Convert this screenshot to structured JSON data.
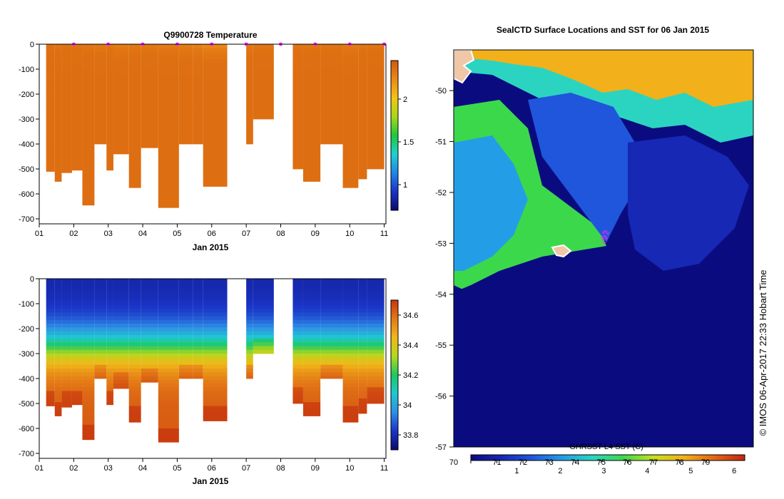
{
  "colors": {
    "temp_ramp": [
      "#0b0b6e",
      "#1a35c8",
      "#1f86e8",
      "#1fd0d0",
      "#1ec83c",
      "#a8d818",
      "#f2c416",
      "#ec8a16",
      "#d2570f"
    ],
    "salt_ramp": [
      "#0b0b6e",
      "#1a35c8",
      "#2f8ee6",
      "#1fc8d0",
      "#1ec862",
      "#b6d81c",
      "#f0b81a",
      "#e47a16",
      "#c8360e"
    ],
    "sst_ramp": [
      "#0b0b80",
      "#1628b4",
      "#1f56dc",
      "#239ee6",
      "#2bd4c0",
      "#3cd84c",
      "#c6e022",
      "#f2b01a",
      "#e46614",
      "#c22412"
    ],
    "marker": "#ff22ff",
    "land": "#f0c8a8"
  },
  "chart_data": [
    {
      "type": "heatmap",
      "title": "Q9900728  Temperature",
      "xlabel": "Jan 2015",
      "xlim": [
        1,
        11.05
      ],
      "ylim": [
        -720,
        0
      ],
      "x_ticks": [
        {
          "v": 1,
          "label": "01"
        },
        {
          "v": 2,
          "label": "02"
        },
        {
          "v": 3,
          "label": "03"
        },
        {
          "v": 4,
          "label": "04"
        },
        {
          "v": 5,
          "label": "05"
        },
        {
          "v": 6,
          "label": "06"
        },
        {
          "v": 7,
          "label": "07"
        },
        {
          "v": 8,
          "label": "08"
        },
        {
          "v": 9,
          "label": "09"
        },
        {
          "v": 10,
          "label": "10"
        },
        {
          "v": 11,
          "label": "11"
        }
      ],
      "y_ticks": [
        {
          "v": 0,
          "label": "0"
        },
        {
          "v": -100,
          "label": "-100"
        },
        {
          "v": -200,
          "label": "-200"
        },
        {
          "v": -300,
          "label": "-300"
        },
        {
          "v": -400,
          "label": "-400"
        },
        {
          "v": -500,
          "label": "-500"
        },
        {
          "v": -600,
          "label": "-600"
        },
        {
          "v": -700,
          "label": "-700"
        }
      ],
      "colorbar": {
        "min": 0.7,
        "max": 2.45,
        "ticks": [
          {
            "v": 1,
            "label": "1"
          },
          {
            "v": 1.5,
            "label": "1.5"
          },
          {
            "v": 2,
            "label": "2"
          }
        ]
      },
      "profile_markers": [
        2,
        3,
        4,
        5,
        6,
        7,
        8,
        9,
        10,
        11
      ],
      "profiles": [
        {
          "t0": 1.2,
          "t1": 1.45,
          "depth": 510,
          "cmin": -190,
          "top": 2.1
        },
        {
          "t0": 1.45,
          "t1": 1.65,
          "depth": 550,
          "cmin": -165,
          "top": 1.95
        },
        {
          "t0": 1.65,
          "t1": 1.95,
          "depth": 515,
          "cmin": -180,
          "top": 2.0
        },
        {
          "t0": 1.95,
          "t1": 2.25,
          "depth": 505,
          "cmin": -175,
          "top": 1.9
        },
        {
          "t0": 2.25,
          "t1": 2.6,
          "depth": 645,
          "cmin": -160,
          "top": 2.05
        },
        {
          "t0": 2.6,
          "t1": 2.95,
          "depth": 400,
          "cmin": -150,
          "top": 1.9
        },
        {
          "t0": 2.95,
          "t1": 3.15,
          "depth": 505,
          "cmin": -165,
          "top": 1.85
        },
        {
          "t0": 3.15,
          "t1": 3.6,
          "depth": 440,
          "cmin": -140,
          "top": 1.8
        },
        {
          "t0": 3.6,
          "t1": 3.95,
          "depth": 575,
          "cmin": -150,
          "top": 1.9
        },
        {
          "t0": 3.95,
          "t1": 4.45,
          "depth": 415,
          "cmin": -155,
          "top": 1.85
        },
        {
          "t0": 4.45,
          "t1": 5.05,
          "depth": 655,
          "cmin": -145,
          "top": 1.9
        },
        {
          "t0": 5.05,
          "t1": 5.45,
          "depth": 400,
          "cmin": -140,
          "top": 1.85
        },
        {
          "t0": 5.45,
          "t1": 5.75,
          "depth": 400,
          "cmin": -130,
          "top": 1.8
        },
        {
          "t0": 5.75,
          "t1": 6.45,
          "depth": 570,
          "cmin": -120,
          "top": 1.75
        },
        {
          "t0": 7.0,
          "t1": 7.2,
          "depth": 400,
          "cmin": -150,
          "top": 1.75
        },
        {
          "t0": 7.2,
          "t1": 7.8,
          "depth": 300,
          "cmin": -160,
          "top": 1.8
        },
        {
          "t0": 8.35,
          "t1": 8.65,
          "depth": 500,
          "cmin": -170,
          "top": 1.95
        },
        {
          "t0": 8.65,
          "t1": 9.15,
          "depth": 550,
          "cmin": -165,
          "top": 2.05
        },
        {
          "t0": 9.15,
          "t1": 9.8,
          "depth": 400,
          "cmin": -170,
          "top": 2.1
        },
        {
          "t0": 9.8,
          "t1": 10.25,
          "depth": 575,
          "cmin": -145,
          "top": 1.9
        },
        {
          "t0": 10.25,
          "t1": 10.5,
          "depth": 540,
          "cmin": -160,
          "top": 1.95
        },
        {
          "t0": 10.5,
          "t1": 11.0,
          "depth": 500,
          "cmin": -170,
          "top": 2.05
        }
      ]
    },
    {
      "type": "heatmap",
      "title": "",
      "xlabel": "Jan 2015",
      "xlim": [
        1,
        11.05
      ],
      "ylim": [
        -720,
        0
      ],
      "x_ticks": [
        {
          "v": 1,
          "label": "01"
        },
        {
          "v": 2,
          "label": "02"
        },
        {
          "v": 3,
          "label": "03"
        },
        {
          "v": 4,
          "label": "04"
        },
        {
          "v": 5,
          "label": "05"
        },
        {
          "v": 6,
          "label": "06"
        },
        {
          "v": 7,
          "label": "07"
        },
        {
          "v": 8,
          "label": "08"
        },
        {
          "v": 9,
          "label": "09"
        },
        {
          "v": 10,
          "label": "10"
        },
        {
          "v": 11,
          "label": "11"
        }
      ],
      "y_ticks": [
        {
          "v": 0,
          "label": "0"
        },
        {
          "v": -100,
          "label": "-100"
        },
        {
          "v": -200,
          "label": "-200"
        },
        {
          "v": -300,
          "label": "-300"
        },
        {
          "v": -400,
          "label": "-400"
        },
        {
          "v": -500,
          "label": "-500"
        },
        {
          "v": -600,
          "label": "-600"
        },
        {
          "v": -700,
          "label": "-700"
        }
      ],
      "colorbar": {
        "min": 33.7,
        "max": 34.7,
        "ticks": [
          {
            "v": 33.8,
            "label": "33.8"
          },
          {
            "v": 34,
            "label": "34"
          },
          {
            "v": 34.2,
            "label": "34.2"
          },
          {
            "v": 34.4,
            "label": "34.4"
          },
          {
            "v": 34.6,
            "label": "34.6"
          }
        ]
      }
    },
    {
      "type": "heatmap",
      "title": "SealCTD Surface Locations and SST for 06 Jan 2015",
      "ylim": [
        -57,
        -49.2
      ],
      "y_ticks": [
        {
          "v": -50,
          "label": "-50"
        },
        {
          "v": -51,
          "label": "-51"
        },
        {
          "v": -52,
          "label": "-52"
        },
        {
          "v": -53,
          "label": "-53"
        },
        {
          "v": -54,
          "label": "-54"
        },
        {
          "v": -55,
          "label": "-55"
        },
        {
          "v": -56,
          "label": "-56"
        },
        {
          "v": -57,
          "label": "-57"
        }
      ],
      "colorbar_label": "GHRSST L4 SST (C)",
      "colorbar_f": {
        "min": 70,
        "max": 80.5,
        "ticks": [
          {
            "v": 70,
            "label": "70"
          },
          {
            "v": 71,
            "label": "71"
          },
          {
            "v": 72,
            "label": "72"
          },
          {
            "v": 73,
            "label": "73"
          },
          {
            "v": 74,
            "label": "74"
          },
          {
            "v": 75,
            "label": "75"
          },
          {
            "v": 76,
            "label": "76"
          },
          {
            "v": 77,
            "label": "77"
          },
          {
            "v": 78,
            "label": "78"
          },
          {
            "v": 79,
            "label": "79"
          }
        ]
      },
      "colorbar_c": {
        "ticks": [
          {
            "v": 1,
            "label": "1"
          },
          {
            "v": 2,
            "label": "2"
          },
          {
            "v": 3,
            "label": "3"
          },
          {
            "v": 4,
            "label": "4"
          },
          {
            "v": 5,
            "label": "5"
          },
          {
            "v": 6,
            "label": "6"
          }
        ]
      },
      "credit": "© IMOS 06-Apr-2017 22:33 Hobart Time"
    }
  ]
}
